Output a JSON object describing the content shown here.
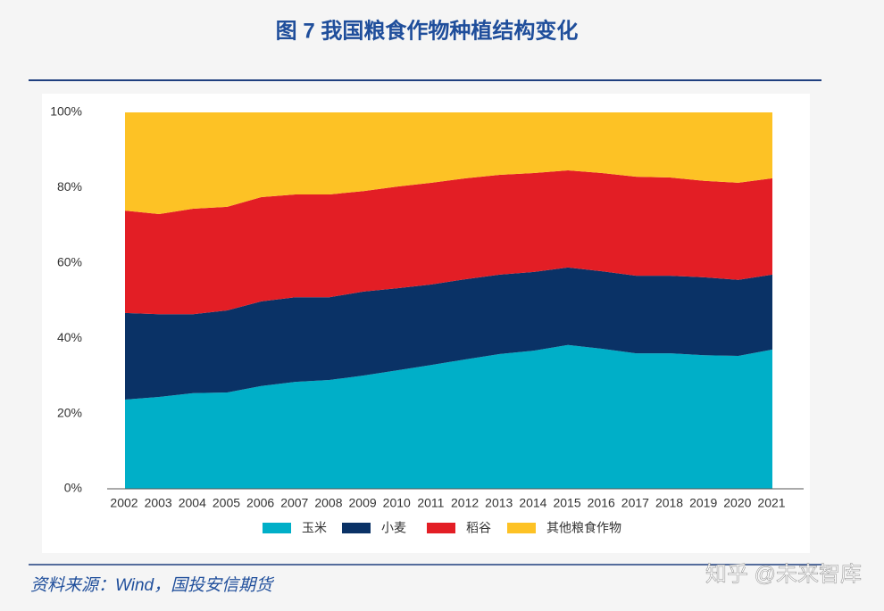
{
  "chart_data": {
    "type": "stacked_area",
    "title": "图 7 我国粮食作物种植结构变化",
    "source": "资料来源：Wind，国投安信期货",
    "watermark": "知乎 @未来智库",
    "categories": [
      "2002",
      "2003",
      "2004",
      "2005",
      "2006",
      "2007",
      "2008",
      "2009",
      "2010",
      "2011",
      "2012",
      "2013",
      "2014",
      "2015",
      "2016",
      "2017",
      "2018",
      "2019",
      "2020",
      "2021"
    ],
    "series": [
      {
        "name": "玉米",
        "color": "#00afc8",
        "values": [
          23.7,
          24.4,
          25.4,
          25.6,
          27.3,
          28.4,
          28.9,
          30.1,
          31.5,
          32.9,
          34.4,
          35.8,
          36.7,
          38.2,
          37.2,
          36.0,
          36.0,
          35.5,
          35.3,
          37.0
        ]
      },
      {
        "name": "小麦",
        "color": "#0a3266",
        "values": [
          23.0,
          22.0,
          21.0,
          21.8,
          22.5,
          22.5,
          22.0,
          22.3,
          21.8,
          21.4,
          21.3,
          21.1,
          20.9,
          20.6,
          20.6,
          20.6,
          20.6,
          20.7,
          20.2,
          19.9
        ]
      },
      {
        "name": "稻谷",
        "color": "#e31e25",
        "values": [
          27.2,
          26.6,
          28.0,
          27.5,
          27.7,
          27.3,
          27.3,
          26.7,
          27.0,
          27.0,
          26.8,
          26.5,
          26.3,
          25.8,
          26.1,
          26.3,
          26.1,
          25.6,
          25.8,
          25.6
        ]
      },
      {
        "name": "其他粮食作物",
        "color": "#fdc225",
        "values": [
          26.1,
          27.0,
          25.6,
          25.1,
          22.5,
          21.8,
          21.8,
          20.9,
          19.7,
          18.7,
          17.5,
          16.6,
          16.1,
          15.4,
          16.1,
          17.1,
          17.3,
          18.2,
          18.7,
          17.5
        ]
      }
    ],
    "ylim": [
      0,
      100
    ],
    "yticks": [
      {
        "value": 0,
        "label": "0%"
      },
      {
        "value": 20,
        "label": "20%"
      },
      {
        "value": 40,
        "label": "40%"
      },
      {
        "value": 60,
        "label": "60%"
      },
      {
        "value": 80,
        "label": "80%"
      },
      {
        "value": 100,
        "label": "100%"
      }
    ]
  }
}
